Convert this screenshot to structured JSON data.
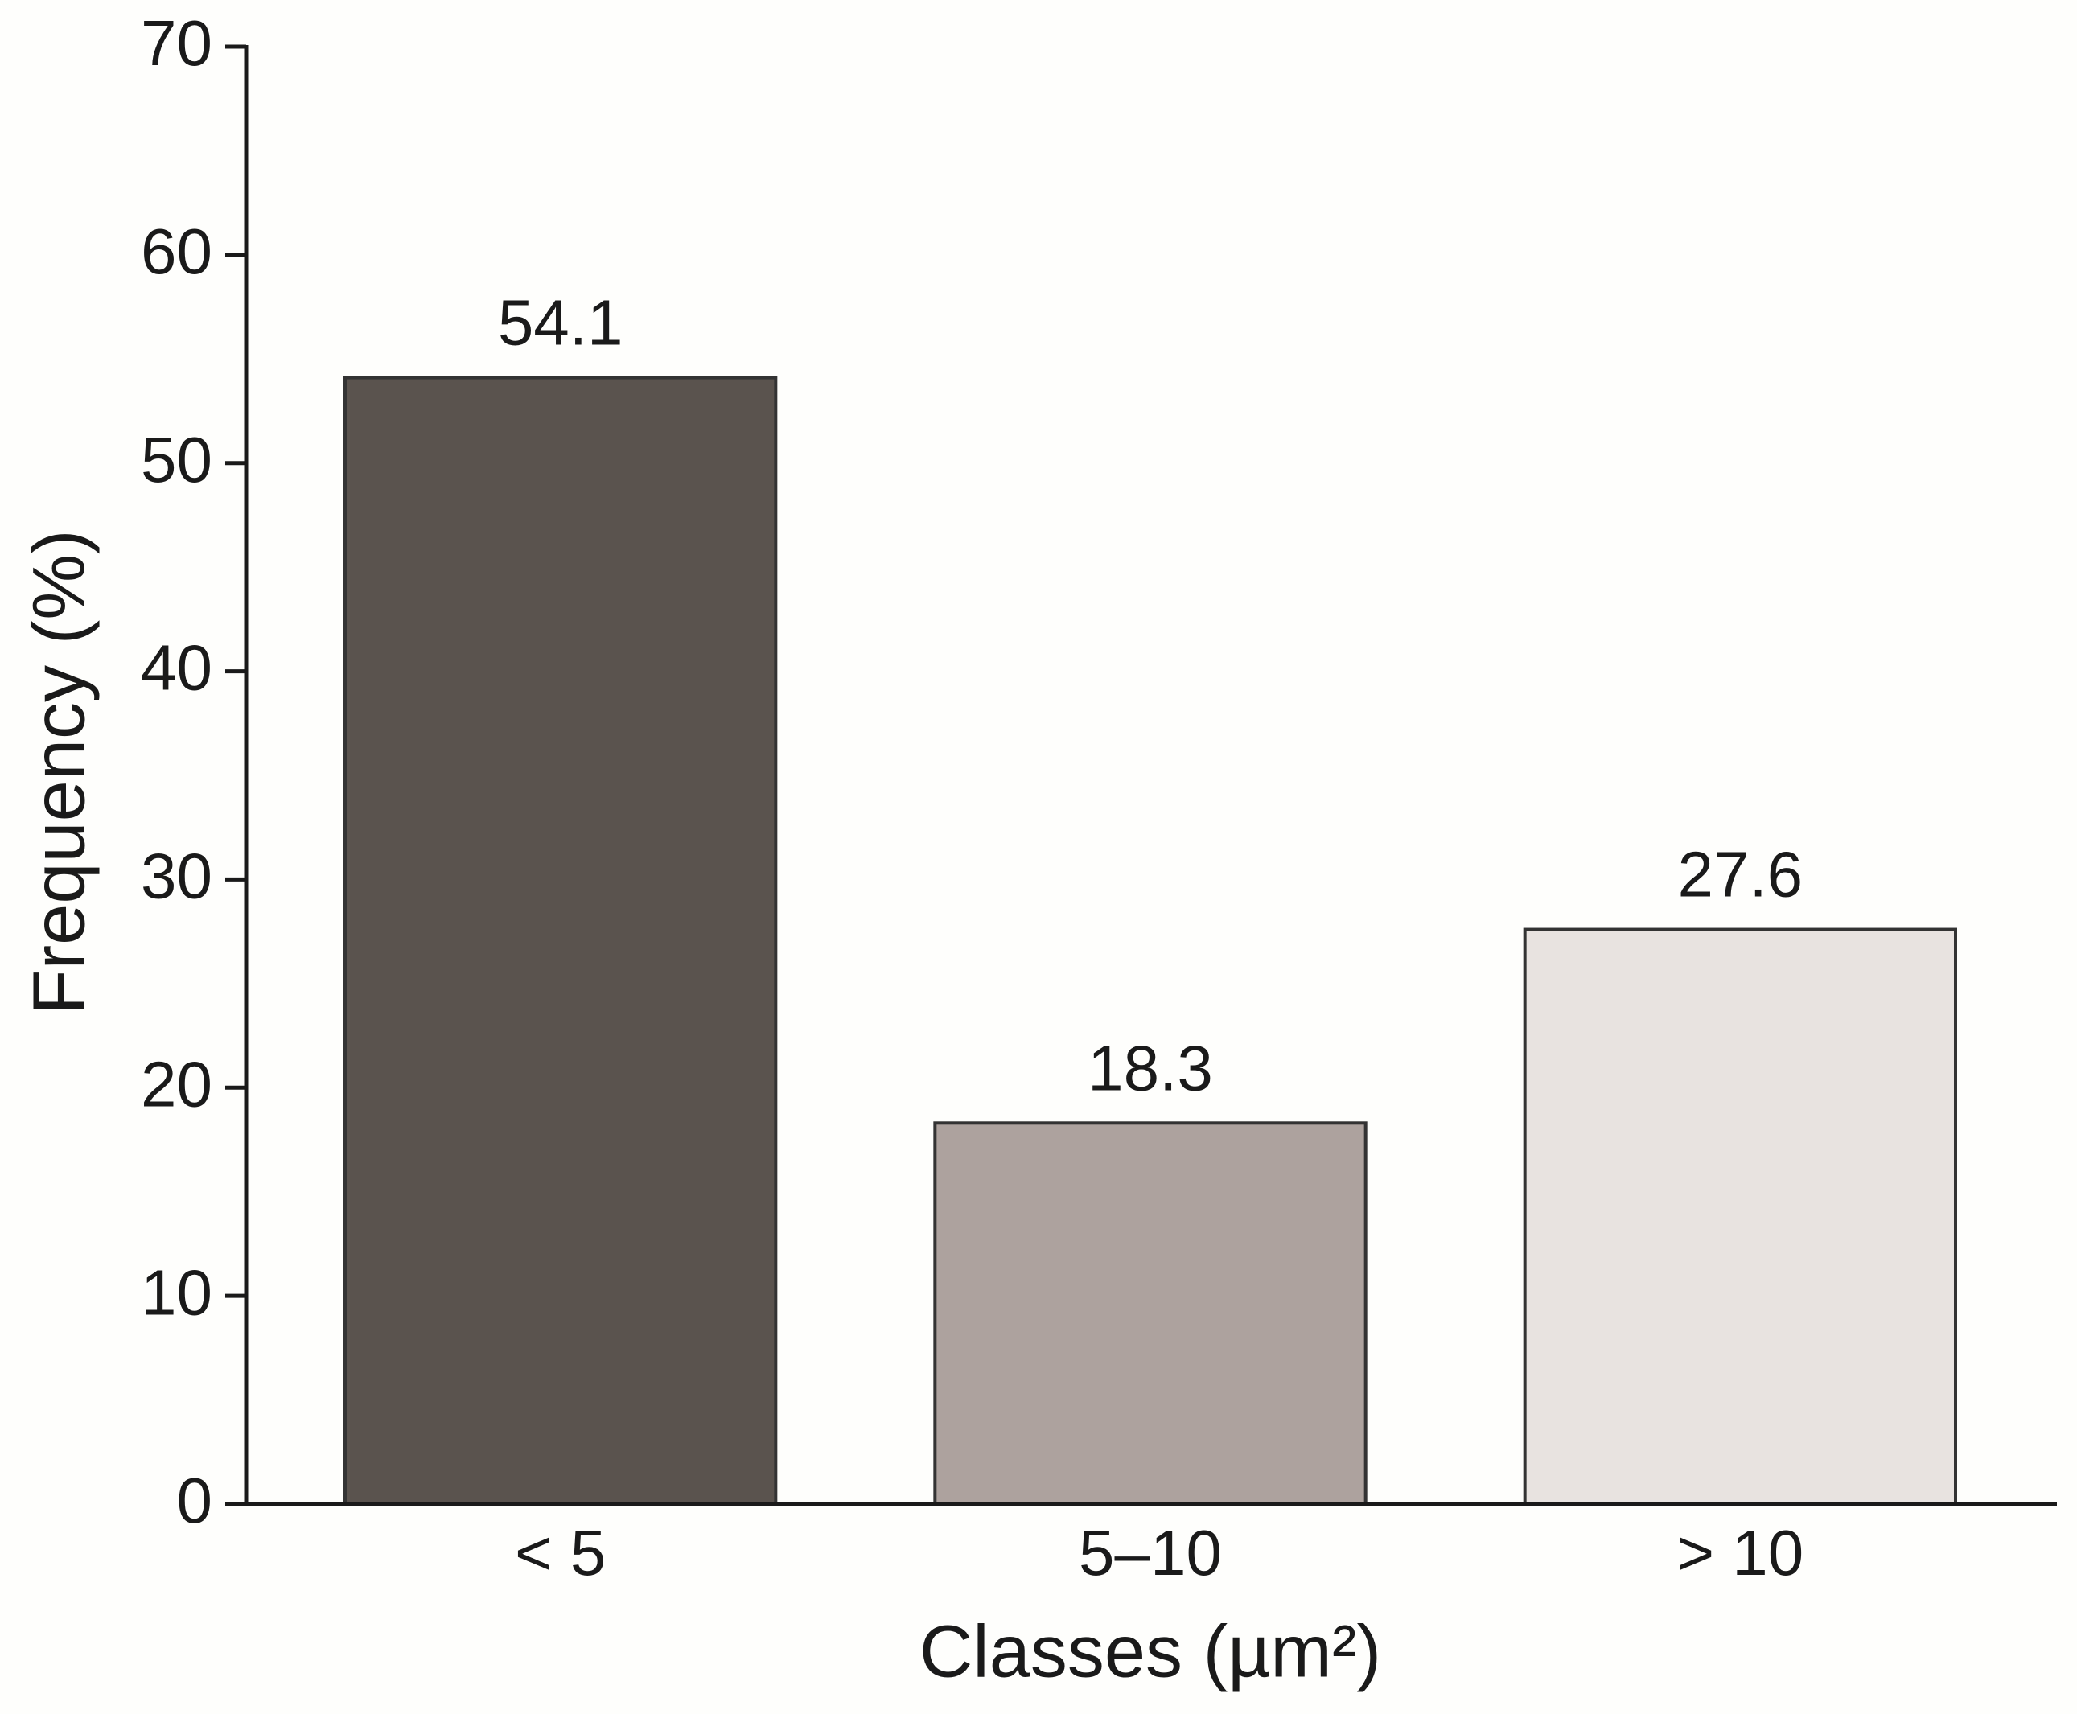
{
  "chart_data": {
    "type": "bar",
    "x_label": "Classes (µm²)",
    "y_label": "Frequency (%)",
    "categories": [
      "< 5",
      "5–10",
      "> 10"
    ],
    "values": [
      54.1,
      18.3,
      27.6
    ],
    "colors": [
      "#5a534e",
      "#ada29e",
      "#e8e3e0"
    ],
    "ylim": [
      0,
      70
    ],
    "yticks": [
      0,
      10,
      20,
      30,
      40,
      50,
      60,
      70
    ]
  }
}
